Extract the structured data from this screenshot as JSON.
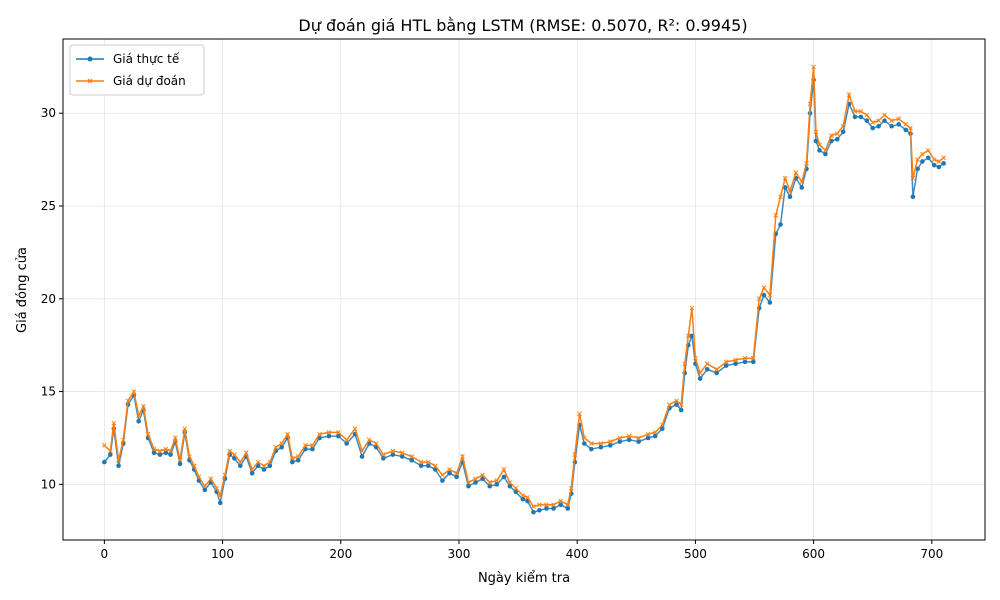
{
  "chart_data": {
    "type": "line",
    "title": "Dự đoán giá HTL bằng LSTM (RMSE: 0.5070, R²: 0.9945)",
    "xlabel": "Ngày kiểm tra",
    "ylabel": "Giá đóng cửa",
    "xlim": [
      -35,
      745
    ],
    "ylim": [
      7.0,
      34.0
    ],
    "xticks": [
      0,
      100,
      200,
      300,
      400,
      500,
      600,
      700
    ],
    "yticks": [
      10,
      15,
      20,
      25,
      30
    ],
    "grid": true,
    "legend_position": "upper-left",
    "colors": {
      "actual": "#1f77b4",
      "predicted": "#ff7f0e"
    },
    "series": [
      {
        "name": "Giá thực tế",
        "marker": "circle",
        "anchor_points": [
          [
            0,
            11.2
          ],
          [
            5,
            11.6
          ],
          [
            8,
            13.0
          ],
          [
            12,
            11.0
          ],
          [
            16,
            12.2
          ],
          [
            20,
            14.3
          ],
          [
            25,
            14.8
          ],
          [
            29,
            13.4
          ],
          [
            33,
            14.0
          ],
          [
            37,
            12.5
          ],
          [
            42,
            11.7
          ],
          [
            47,
            11.6
          ],
          [
            52,
            11.7
          ],
          [
            56,
            11.6
          ],
          [
            60,
            12.3
          ],
          [
            64,
            11.1
          ],
          [
            68,
            12.8
          ],
          [
            72,
            11.3
          ],
          [
            76,
            10.8
          ],
          [
            80,
            10.2
          ],
          [
            85,
            9.7
          ],
          [
            90,
            10.1
          ],
          [
            95,
            9.6
          ],
          [
            98,
            9.0
          ],
          [
            102,
            10.3
          ],
          [
            106,
            11.6
          ],
          [
            110,
            11.4
          ],
          [
            115,
            11.0
          ],
          [
            120,
            11.5
          ],
          [
            125,
            10.6
          ],
          [
            130,
            11.0
          ],
          [
            135,
            10.8
          ],
          [
            140,
            11.0
          ],
          [
            145,
            11.8
          ],
          [
            150,
            12.0
          ],
          [
            155,
            12.5
          ],
          [
            159,
            11.2
          ],
          [
            164,
            11.3
          ],
          [
            170,
            11.9
          ],
          [
            176,
            11.9
          ],
          [
            182,
            12.5
          ],
          [
            190,
            12.6
          ],
          [
            198,
            12.6
          ],
          [
            205,
            12.2
          ],
          [
            212,
            12.7
          ],
          [
            218,
            11.5
          ],
          [
            224,
            12.2
          ],
          [
            230,
            12.0
          ],
          [
            236,
            11.4
          ],
          [
            244,
            11.6
          ],
          [
            252,
            11.5
          ],
          [
            260,
            11.3
          ],
          [
            268,
            11.0
          ],
          [
            274,
            11.0
          ],
          [
            280,
            10.8
          ],
          [
            286,
            10.2
          ],
          [
            292,
            10.6
          ],
          [
            298,
            10.4
          ],
          [
            303,
            11.2
          ],
          [
            308,
            9.9
          ],
          [
            314,
            10.1
          ],
          [
            320,
            10.3
          ],
          [
            326,
            9.9
          ],
          [
            332,
            10.0
          ],
          [
            338,
            10.4
          ],
          [
            343,
            9.9
          ],
          [
            348,
            9.6
          ],
          [
            354,
            9.2
          ],
          [
            358,
            9.1
          ],
          [
            363,
            8.5
          ],
          [
            368,
            8.6
          ],
          [
            374,
            8.7
          ],
          [
            380,
            8.7
          ],
          [
            386,
            8.9
          ],
          [
            392,
            8.7
          ],
          [
            395,
            9.5
          ],
          [
            398,
            11.2
          ],
          [
            402,
            13.2
          ],
          [
            406,
            12.2
          ],
          [
            412,
            11.9
          ],
          [
            420,
            12.0
          ],
          [
            428,
            12.1
          ],
          [
            436,
            12.3
          ],
          [
            444,
            12.4
          ],
          [
            452,
            12.3
          ],
          [
            460,
            12.5
          ],
          [
            466,
            12.6
          ],
          [
            472,
            13.0
          ],
          [
            478,
            14.1
          ],
          [
            484,
            14.3
          ],
          [
            488,
            14.0
          ],
          [
            491,
            16.0
          ],
          [
            494,
            17.5
          ],
          [
            497,
            18.0
          ],
          [
            500,
            16.5
          ],
          [
            504,
            15.7
          ],
          [
            510,
            16.2
          ],
          [
            518,
            16.0
          ],
          [
            526,
            16.4
          ],
          [
            534,
            16.5
          ],
          [
            542,
            16.6
          ],
          [
            549,
            16.6
          ],
          [
            554,
            19.5
          ],
          [
            558,
            20.2
          ],
          [
            563,
            19.8
          ],
          [
            568,
            23.5
          ],
          [
            572,
            24.0
          ],
          [
            576,
            26.0
          ],
          [
            580,
            25.5
          ],
          [
            585,
            26.5
          ],
          [
            590,
            26.0
          ],
          [
            594,
            27.0
          ],
          [
            597,
            30.0
          ],
          [
            600,
            31.8
          ],
          [
            602,
            28.5
          ],
          [
            605,
            28.0
          ],
          [
            610,
            27.8
          ],
          [
            615,
            28.5
          ],
          [
            620,
            28.6
          ],
          [
            625,
            29.0
          ],
          [
            630,
            30.5
          ],
          [
            635,
            29.8
          ],
          [
            640,
            29.8
          ],
          [
            645,
            29.6
          ],
          [
            650,
            29.2
          ],
          [
            655,
            29.3
          ],
          [
            660,
            29.6
          ],
          [
            666,
            29.3
          ],
          [
            672,
            29.4
          ],
          [
            678,
            29.1
          ],
          [
            682,
            28.9
          ],
          [
            684,
            25.5
          ],
          [
            688,
            27.0
          ],
          [
            692,
            27.4
          ],
          [
            697,
            27.6
          ],
          [
            702,
            27.2
          ],
          [
            706,
            27.1
          ],
          [
            710,
            27.3
          ]
        ]
      },
      {
        "name": "Giá dự đoán",
        "marker": "x",
        "anchor_points": [
          [
            0,
            12.1
          ],
          [
            5,
            11.8
          ],
          [
            8,
            13.3
          ],
          [
            12,
            11.3
          ],
          [
            16,
            12.4
          ],
          [
            20,
            14.5
          ],
          [
            25,
            15.0
          ],
          [
            29,
            13.7
          ],
          [
            33,
            14.2
          ],
          [
            37,
            12.7
          ],
          [
            42,
            11.9
          ],
          [
            47,
            11.8
          ],
          [
            52,
            11.9
          ],
          [
            56,
            11.8
          ],
          [
            60,
            12.5
          ],
          [
            64,
            11.3
          ],
          [
            68,
            13.0
          ],
          [
            72,
            11.5
          ],
          [
            76,
            11.0
          ],
          [
            80,
            10.4
          ],
          [
            85,
            9.9
          ],
          [
            90,
            10.3
          ],
          [
            95,
            9.8
          ],
          [
            98,
            9.4
          ],
          [
            102,
            10.5
          ],
          [
            106,
            11.8
          ],
          [
            110,
            11.6
          ],
          [
            115,
            11.2
          ],
          [
            120,
            11.7
          ],
          [
            125,
            10.8
          ],
          [
            130,
            11.2
          ],
          [
            135,
            11.0
          ],
          [
            140,
            11.2
          ],
          [
            145,
            12.0
          ],
          [
            150,
            12.2
          ],
          [
            155,
            12.7
          ],
          [
            159,
            11.4
          ],
          [
            164,
            11.5
          ],
          [
            170,
            12.1
          ],
          [
            176,
            12.1
          ],
          [
            182,
            12.7
          ],
          [
            190,
            12.8
          ],
          [
            198,
            12.8
          ],
          [
            205,
            12.4
          ],
          [
            212,
            13.0
          ],
          [
            218,
            11.8
          ],
          [
            224,
            12.4
          ],
          [
            230,
            12.2
          ],
          [
            236,
            11.6
          ],
          [
            244,
            11.8
          ],
          [
            252,
            11.7
          ],
          [
            260,
            11.5
          ],
          [
            268,
            11.2
          ],
          [
            274,
            11.2
          ],
          [
            280,
            11.0
          ],
          [
            286,
            10.5
          ],
          [
            292,
            10.8
          ],
          [
            298,
            10.6
          ],
          [
            303,
            11.5
          ],
          [
            308,
            10.1
          ],
          [
            314,
            10.3
          ],
          [
            320,
            10.5
          ],
          [
            326,
            10.1
          ],
          [
            332,
            10.2
          ],
          [
            338,
            10.8
          ],
          [
            343,
            10.1
          ],
          [
            348,
            9.8
          ],
          [
            354,
            9.4
          ],
          [
            358,
            9.3
          ],
          [
            363,
            8.8
          ],
          [
            368,
            8.9
          ],
          [
            374,
            8.9
          ],
          [
            380,
            8.9
          ],
          [
            386,
            9.1
          ],
          [
            392,
            8.9
          ],
          [
            395,
            9.8
          ],
          [
            398,
            11.6
          ],
          [
            402,
            13.8
          ],
          [
            406,
            12.5
          ],
          [
            412,
            12.2
          ],
          [
            420,
            12.2
          ],
          [
            428,
            12.3
          ],
          [
            436,
            12.5
          ],
          [
            444,
            12.6
          ],
          [
            452,
            12.5
          ],
          [
            460,
            12.7
          ],
          [
            466,
            12.8
          ],
          [
            472,
            13.2
          ],
          [
            478,
            14.3
          ],
          [
            484,
            14.5
          ],
          [
            488,
            14.3
          ],
          [
            491,
            16.5
          ],
          [
            494,
            18.0
          ],
          [
            497,
            19.5
          ],
          [
            500,
            16.8
          ],
          [
            504,
            16.0
          ],
          [
            510,
            16.5
          ],
          [
            518,
            16.2
          ],
          [
            526,
            16.6
          ],
          [
            534,
            16.7
          ],
          [
            542,
            16.8
          ],
          [
            549,
            16.8
          ],
          [
            554,
            20.0
          ],
          [
            558,
            20.6
          ],
          [
            563,
            20.2
          ],
          [
            568,
            24.5
          ],
          [
            572,
            25.5
          ],
          [
            576,
            26.5
          ],
          [
            580,
            25.8
          ],
          [
            585,
            26.8
          ],
          [
            590,
            26.3
          ],
          [
            594,
            27.3
          ],
          [
            597,
            30.5
          ],
          [
            600,
            32.5
          ],
          [
            602,
            29.0
          ],
          [
            605,
            28.3
          ],
          [
            610,
            28.0
          ],
          [
            615,
            28.8
          ],
          [
            620,
            28.9
          ],
          [
            625,
            29.3
          ],
          [
            630,
            31.0
          ],
          [
            635,
            30.1
          ],
          [
            640,
            30.1
          ],
          [
            645,
            29.9
          ],
          [
            650,
            29.5
          ],
          [
            655,
            29.6
          ],
          [
            660,
            29.9
          ],
          [
            666,
            29.6
          ],
          [
            672,
            29.7
          ],
          [
            678,
            29.4
          ],
          [
            682,
            29.2
          ],
          [
            684,
            26.5
          ],
          [
            688,
            27.5
          ],
          [
            692,
            27.8
          ],
          [
            697,
            28.0
          ],
          [
            702,
            27.5
          ],
          [
            706,
            27.4
          ],
          [
            710,
            27.6
          ]
        ]
      }
    ]
  }
}
